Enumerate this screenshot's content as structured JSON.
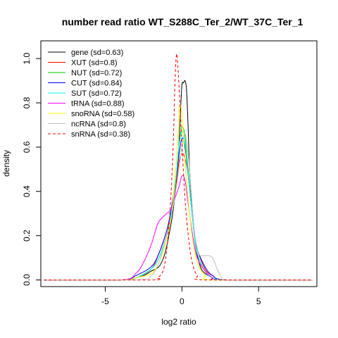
{
  "chart_data": {
    "type": "line",
    "title": "number read ratio WT_S288C_Ter_2/WT_37C_Ter_1",
    "xlabel": "log2 ratio",
    "ylabel": "density",
    "xlim": [
      -9.2,
      8.8
    ],
    "ylim": [
      -0.03,
      1.08
    ],
    "x_ticks": [
      -5,
      0,
      5
    ],
    "x_tick_labels": [
      "-5",
      "0",
      "5"
    ],
    "y_ticks": [
      0.0,
      0.2,
      0.4,
      0.6,
      0.8,
      1.0
    ],
    "y_tick_labels": [
      "0.0",
      "0.2",
      "0.4",
      "0.6",
      "0.8",
      "1.0"
    ],
    "grid": false,
    "legend_position": "top-left",
    "series": [
      {
        "name": "gene (sd=0.63)",
        "color": "#000000",
        "dash": "solid",
        "x": [
          -9,
          -4,
          -3,
          -2.5,
          -2,
          -1.5,
          -1.2,
          -1,
          -0.8,
          -0.6,
          -0.4,
          -0.3,
          -0.2,
          -0.1,
          0,
          0.1,
          0.2,
          0.3,
          0.4,
          0.5,
          0.7,
          0.9,
          1.2,
          1.5,
          2,
          2.5,
          8.5
        ],
        "y": [
          0,
          0,
          0.01,
          0.02,
          0.04,
          0.06,
          0.1,
          0.15,
          0.22,
          0.3,
          0.42,
          0.5,
          0.6,
          0.75,
          0.88,
          0.89,
          0.9,
          0.86,
          0.7,
          0.5,
          0.3,
          0.15,
          0.06,
          0.03,
          0.01,
          0,
          0
        ]
      },
      {
        "name": "XUT (sd=0.8)",
        "color": "#ff0000",
        "dash": "solid",
        "x": [
          -9,
          -4,
          -3,
          -2,
          -1.5,
          -1,
          -0.7,
          -0.4,
          -0.2,
          0,
          0.2,
          0.4,
          0.6,
          0.8,
          1,
          1.5,
          2,
          3,
          8.5
        ],
        "y": [
          0,
          0,
          0.01,
          0.05,
          0.12,
          0.22,
          0.3,
          0.42,
          0.53,
          0.57,
          0.55,
          0.48,
          0.35,
          0.22,
          0.14,
          0.05,
          0.02,
          0,
          0
        ]
      },
      {
        "name": "NUT (sd=0.72)",
        "color": "#00cd00",
        "dash": "solid",
        "x": [
          -9,
          -4,
          -3,
          -2,
          -1.5,
          -1,
          -0.7,
          -0.4,
          -0.2,
          0,
          0.2,
          0.4,
          0.6,
          0.8,
          1,
          1.5,
          2,
          3,
          8.5
        ],
        "y": [
          0,
          0,
          0.01,
          0.05,
          0.1,
          0.2,
          0.3,
          0.45,
          0.6,
          0.69,
          0.65,
          0.5,
          0.35,
          0.22,
          0.12,
          0.04,
          0.01,
          0,
          0
        ]
      },
      {
        "name": "CUT (sd=0.84)",
        "color": "#0000ff",
        "dash": "solid",
        "x": [
          -9,
          -4,
          -3,
          -2,
          -1.5,
          -1,
          -0.7,
          -0.4,
          -0.2,
          0,
          0.2,
          0.4,
          0.6,
          0.8,
          1,
          1.5,
          2,
          3,
          8.5
        ],
        "y": [
          0,
          0,
          0.02,
          0.06,
          0.12,
          0.22,
          0.32,
          0.45,
          0.56,
          0.64,
          0.6,
          0.48,
          0.34,
          0.22,
          0.14,
          0.06,
          0.02,
          0,
          0
        ]
      },
      {
        "name": "SUT (sd=0.72)",
        "color": "#00ffff",
        "dash": "solid",
        "x": [
          -9,
          -4,
          -3,
          -2,
          -1.5,
          -1,
          -0.7,
          -0.4,
          -0.2,
          0,
          0.2,
          0.4,
          0.6,
          0.8,
          1,
          1.5,
          2,
          3,
          8.5
        ],
        "y": [
          0,
          0,
          0.01,
          0.05,
          0.1,
          0.2,
          0.3,
          0.45,
          0.6,
          0.67,
          0.62,
          0.48,
          0.34,
          0.2,
          0.12,
          0.04,
          0.01,
          0,
          0
        ]
      },
      {
        "name": "tRNA (sd=0.88)",
        "color": "#ff00ff",
        "dash": "solid",
        "x": [
          -9,
          -4,
          -3,
          -2.5,
          -2,
          -1.6,
          -1.3,
          -1,
          -0.7,
          -0.4,
          -0.2,
          0,
          0.2,
          0.4,
          0.7,
          1,
          1.5,
          2,
          2.5,
          8.5
        ],
        "y": [
          0,
          0,
          0.03,
          0.08,
          0.16,
          0.25,
          0.28,
          0.3,
          0.32,
          0.38,
          0.42,
          0.47,
          0.45,
          0.35,
          0.2,
          0.1,
          0.04,
          0.01,
          0,
          0
        ]
      },
      {
        "name": "snoRNA (sd=0.58)",
        "color": "#ffff00",
        "dash": "solid",
        "x": [
          -9,
          -4,
          -3,
          -2,
          -1.5,
          -1,
          -0.7,
          -0.5,
          -0.3,
          -0.15,
          0,
          0.15,
          0.3,
          0.5,
          0.7,
          1,
          1.5,
          2,
          8.5
        ],
        "y": [
          0,
          0,
          0.01,
          0.03,
          0.08,
          0.18,
          0.28,
          0.42,
          0.6,
          0.78,
          0.75,
          0.6,
          0.45,
          0.3,
          0.18,
          0.08,
          0.02,
          0,
          0
        ]
      },
      {
        "name": "ncRNA (sd=0.8)",
        "color": "#bebebe",
        "dash": "solid",
        "x": [
          -9,
          -3,
          -2,
          -1.5,
          -1,
          -0.6,
          -0.3,
          0,
          0.2,
          0.4,
          0.6,
          0.8,
          1.1,
          1.4,
          1.7,
          2,
          2.3,
          2.6,
          3,
          8.5
        ],
        "y": [
          0,
          0,
          0.02,
          0.08,
          0.2,
          0.32,
          0.45,
          0.6,
          0.66,
          0.58,
          0.4,
          0.22,
          0.12,
          0.11,
          0.11,
          0.1,
          0.05,
          0.01,
          0,
          0
        ]
      },
      {
        "name": "snRNA (sd=0.38)",
        "color": "#ff0000",
        "dash": "dashed",
        "x": [
          -9,
          -2,
          -1.6,
          -1.3,
          -1.1,
          -0.9,
          -0.7,
          -0.55,
          -0.45,
          -0.35,
          -0.25,
          -0.1,
          0,
          0.15,
          0.3,
          0.5,
          0.7,
          1,
          1.5,
          8.5
        ],
        "y": [
          0,
          0,
          0.01,
          0.03,
          0.08,
          0.2,
          0.4,
          0.65,
          0.9,
          1.02,
          0.95,
          0.75,
          0.62,
          0.42,
          0.28,
          0.15,
          0.07,
          0.02,
          0,
          0
        ]
      }
    ]
  }
}
